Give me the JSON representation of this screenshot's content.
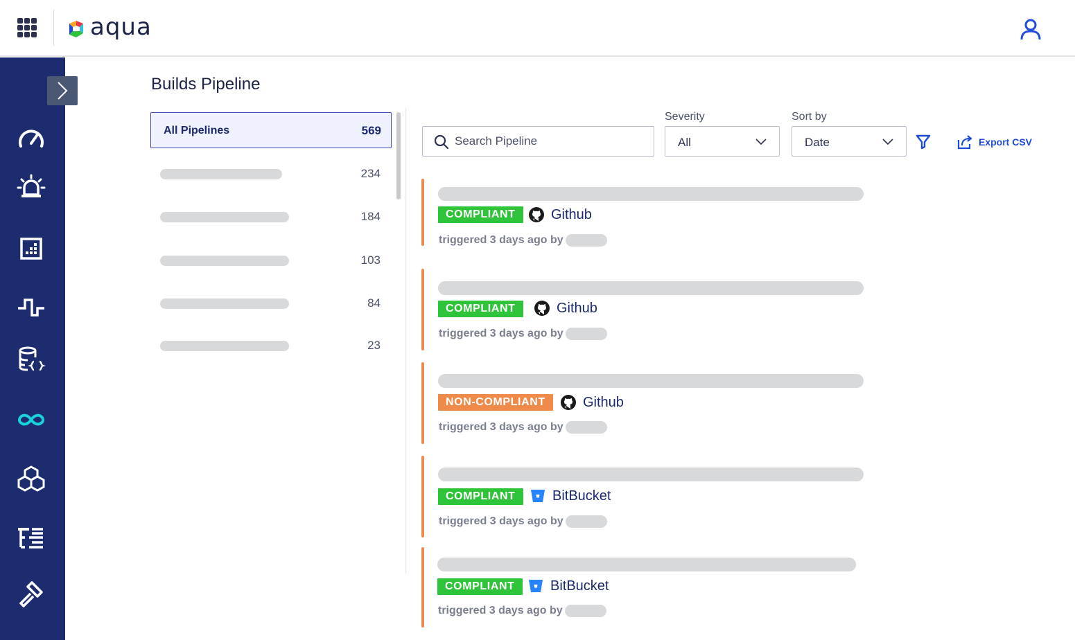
{
  "header": {
    "brand": "aqua",
    "apps_icon": "grid-apps-icon",
    "user_icon": "user-icon"
  },
  "sidebar": {
    "expand_icon": "chevron-right-icon",
    "items": [
      {
        "icon": "speedometer-icon",
        "active": false
      },
      {
        "icon": "alarm-siren-icon",
        "active": false
      },
      {
        "icon": "report-grid-icon",
        "active": false
      },
      {
        "icon": "pulse-wave-icon",
        "active": false
      },
      {
        "icon": "database-code-icon",
        "active": false
      },
      {
        "icon": "infinity-icon",
        "active": true
      },
      {
        "icon": "cubes-icon",
        "active": false
      },
      {
        "icon": "tree-list-icon",
        "active": false
      },
      {
        "icon": "hammer-icon",
        "active": false
      }
    ]
  },
  "page": {
    "title": "Builds Pipeline"
  },
  "pipelines": {
    "active": {
      "label": "All Pipelines",
      "count": "569"
    },
    "items": [
      {
        "count": "234"
      },
      {
        "count": "184"
      },
      {
        "count": "103"
      },
      {
        "count": "84"
      },
      {
        "count": "23"
      }
    ]
  },
  "toolbar": {
    "search_placeholder": "Search Pipeline",
    "severity_label": "Severity",
    "severity_value": "All",
    "sort_label": "Sort by",
    "sort_value": "Date",
    "export_label": "Export CSV"
  },
  "cards": [
    {
      "status": "COMPLIANT",
      "source": "Github",
      "triggered": "triggered 3 days ago by"
    },
    {
      "status": "COMPLIANT",
      "source": "Github",
      "triggered": "triggered 3 days ago by"
    },
    {
      "status": "NON-COMPLIANT",
      "source": "Github",
      "triggered": "triggered 3 days ago by"
    },
    {
      "status": "COMPLIANT",
      "source": "BitBucket",
      "triggered": "triggered 3 days ago by"
    },
    {
      "status": "COMPLIANT",
      "source": "BitBucket",
      "triggered": "triggered 3 days ago by"
    }
  ],
  "colors": {
    "nav_bg": "#1c2c6e",
    "accent": "#1e4bd8",
    "compliant": "#2dc43a",
    "non_compliant": "#f08a4b",
    "active_nav_icon": "#19d3da"
  }
}
